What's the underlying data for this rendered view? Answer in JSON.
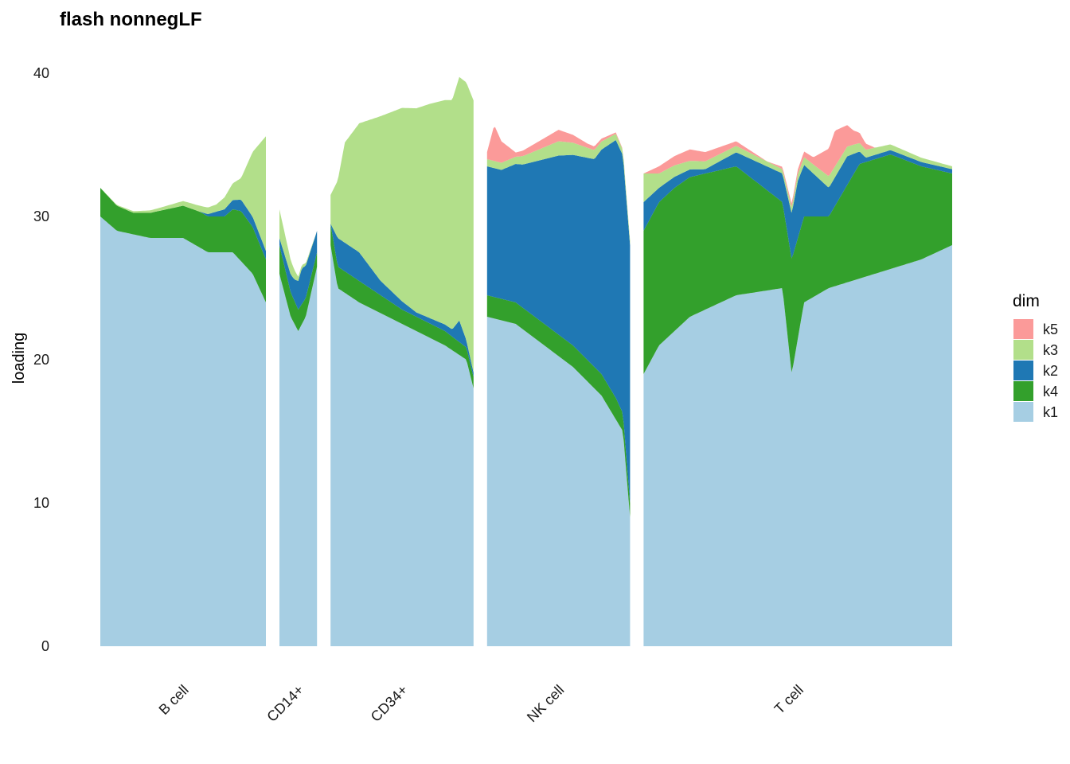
{
  "chart_data": {
    "type": "area",
    "title": "flash nonnegLF",
    "ylabel": "loading",
    "xlabel": "",
    "ylim": [
      0,
      40
    ],
    "yticks": [
      0,
      10,
      20,
      30,
      40
    ],
    "grid": false,
    "legend_position": "right",
    "legend_title": "dim",
    "stack_order": [
      "k1",
      "k4",
      "k2",
      "k3",
      "k5"
    ],
    "legend": [
      {
        "key": "k5",
        "color": "#fb9a99"
      },
      {
        "key": "k3",
        "color": "#b2df8a"
      },
      {
        "key": "k2",
        "color": "#1f78b4"
      },
      {
        "key": "k4",
        "color": "#33a02c"
      },
      {
        "key": "k1",
        "color": "#a6cee3"
      }
    ],
    "categories": [
      "B cell",
      "CD14+",
      "CD34+",
      "NK cell",
      "T cell"
    ],
    "groups": [
      {
        "name": "B cell",
        "relative_width": 2.2,
        "series": {
          "k1": [
            [
              0,
              30
            ],
            [
              0.1,
              29
            ],
            [
              0.3,
              28.5
            ],
            [
              0.5,
              28.5
            ],
            [
              0.65,
              27.5
            ],
            [
              0.8,
              27.5
            ],
            [
              0.92,
              26
            ],
            [
              1,
              24
            ]
          ],
          "k4": [
            [
              0,
              2
            ],
            [
              0.2,
              1.5
            ],
            [
              0.4,
              2
            ],
            [
              0.6,
              2.5
            ],
            [
              0.75,
              2.5
            ],
            [
              0.85,
              3.5
            ],
            [
              1,
              3
            ]
          ],
          "k2": [
            [
              0,
              0
            ],
            [
              0.6,
              0
            ],
            [
              0.75,
              0.5
            ],
            [
              0.85,
              0.8
            ],
            [
              1,
              0.6
            ]
          ],
          "k3": [
            [
              0,
              0
            ],
            [
              0.35,
              0.2
            ],
            [
              0.7,
              0.5
            ],
            [
              0.85,
              1.5
            ],
            [
              1,
              8
            ]
          ],
          "k5": [
            [
              0,
              0
            ],
            [
              1,
              0
            ]
          ]
        }
      },
      {
        "name": "CD14+",
        "relative_width": 0.5,
        "series": {
          "k1": [
            [
              0,
              26
            ],
            [
              0.3,
              23
            ],
            [
              0.5,
              22
            ],
            [
              0.7,
              23
            ],
            [
              1,
              26.5
            ]
          ],
          "k4": [
            [
              0,
              2
            ],
            [
              0.5,
              1.5
            ],
            [
              1,
              1
            ]
          ],
          "k2": [
            [
              0,
              0.5
            ],
            [
              0.4,
              1.5
            ],
            [
              0.6,
              2.5
            ],
            [
              1,
              1.5
            ]
          ],
          "k3": [
            [
              0,
              2
            ],
            [
              0.3,
              1
            ],
            [
              0.5,
              0.3
            ],
            [
              1,
              0
            ]
          ],
          "k5": [
            [
              0,
              0
            ],
            [
              1,
              0
            ]
          ]
        }
      },
      {
        "name": "CD34+",
        "relative_width": 1.9,
        "series": {
          "k1": [
            [
              0,
              28
            ],
            [
              0.05,
              25
            ],
            [
              0.2,
              24
            ],
            [
              0.4,
              23
            ],
            [
              0.6,
              22
            ],
            [
              0.8,
              21
            ],
            [
              0.95,
              20
            ],
            [
              1,
              18
            ]
          ],
          "k4": [
            [
              0,
              1.5
            ],
            [
              0.2,
              1.5
            ],
            [
              0.5,
              1
            ],
            [
              0.8,
              1
            ],
            [
              1,
              0.8
            ]
          ],
          "k2": [
            [
              0,
              0
            ],
            [
              0.05,
              2
            ],
            [
              0.2,
              2
            ],
            [
              0.35,
              1
            ],
            [
              0.6,
              0.3
            ],
            [
              0.85,
              0.5
            ],
            [
              0.9,
              1.5
            ],
            [
              0.95,
              0.5
            ],
            [
              1,
              0.3
            ]
          ],
          "k3": [
            [
              0,
              2
            ],
            [
              0.05,
              4
            ],
            [
              0.1,
              7
            ],
            [
              0.2,
              9
            ],
            [
              0.35,
              11.5
            ],
            [
              0.5,
              13.5
            ],
            [
              0.7,
              15
            ],
            [
              0.85,
              16
            ],
            [
              1,
              19
            ]
          ],
          "k5": [
            [
              0,
              0
            ],
            [
              1,
              0
            ]
          ]
        }
      },
      {
        "name": "NK cell",
        "relative_width": 1.9,
        "series": {
          "k1": [
            [
              0,
              23
            ],
            [
              0.2,
              22.5
            ],
            [
              0.4,
              21
            ],
            [
              0.6,
              19.5
            ],
            [
              0.8,
              17.5
            ],
            [
              0.95,
              15
            ],
            [
              1,
              9
            ]
          ],
          "k4": [
            [
              0,
              1.5
            ],
            [
              0.3,
              1.5
            ],
            [
              0.7,
              1.5
            ],
            [
              0.9,
              1.5
            ],
            [
              1,
              1
            ]
          ],
          "k2": [
            [
              0,
              9
            ],
            [
              0.1,
              9
            ],
            [
              0.25,
              10
            ],
            [
              0.5,
              12.5
            ],
            [
              0.75,
              14.5
            ],
            [
              0.9,
              18
            ],
            [
              1,
              18
            ]
          ],
          "k3": [
            [
              0,
              0.5
            ],
            [
              0.2,
              0.5
            ],
            [
              0.5,
              1
            ],
            [
              0.7,
              0.7
            ],
            [
              1,
              0.3
            ]
          ],
          "k5": [
            [
              0,
              0.5
            ],
            [
              0.05,
              2.5
            ],
            [
              0.1,
              1.5
            ],
            [
              0.2,
              0.3
            ],
            [
              0.5,
              0.8
            ],
            [
              0.7,
              0.3
            ],
            [
              1,
              0
            ]
          ]
        }
      },
      {
        "name": "T cell",
        "relative_width": 4.1,
        "series": {
          "k1": [
            [
              0,
              19
            ],
            [
              0.05,
              21
            ],
            [
              0.15,
              23
            ],
            [
              0.3,
              24.5
            ],
            [
              0.45,
              25
            ],
            [
              0.48,
              19
            ],
            [
              0.52,
              24
            ],
            [
              0.6,
              25
            ],
            [
              0.75,
              26
            ],
            [
              0.9,
              27
            ],
            [
              1,
              28
            ]
          ],
          "k4": [
            [
              0,
              10
            ],
            [
              0.1,
              10
            ],
            [
              0.3,
              9
            ],
            [
              0.45,
              6
            ],
            [
              0.48,
              8
            ],
            [
              0.52,
              6
            ],
            [
              0.6,
              5
            ],
            [
              0.7,
              8
            ],
            [
              0.8,
              8
            ],
            [
              0.9,
              6.5
            ],
            [
              1,
              5
            ]
          ],
          "k2": [
            [
              0,
              2
            ],
            [
              0.05,
              1
            ],
            [
              0.2,
              0.3
            ],
            [
              0.45,
              2
            ],
            [
              0.5,
              4
            ],
            [
              0.6,
              2
            ],
            [
              0.66,
              2
            ],
            [
              0.72,
              0.3
            ],
            [
              0.8,
              0.3
            ],
            [
              1,
              0.3
            ]
          ],
          "k3": [
            [
              0,
              2
            ],
            [
              0.05,
              1
            ],
            [
              0.15,
              0.6
            ],
            [
              0.45,
              0.3
            ],
            [
              0.6,
              0.8
            ],
            [
              0.7,
              0.6
            ],
            [
              0.8,
              0.4
            ],
            [
              1,
              0.2
            ]
          ],
          "k5": [
            [
              0,
              0
            ],
            [
              0.05,
              0.5
            ],
            [
              0.15,
              0.8
            ],
            [
              0.4,
              0
            ],
            [
              0.55,
              0.5
            ],
            [
              0.62,
              2.5
            ],
            [
              0.68,
              1
            ],
            [
              0.75,
              0
            ],
            [
              1,
              0
            ]
          ]
        }
      }
    ]
  }
}
